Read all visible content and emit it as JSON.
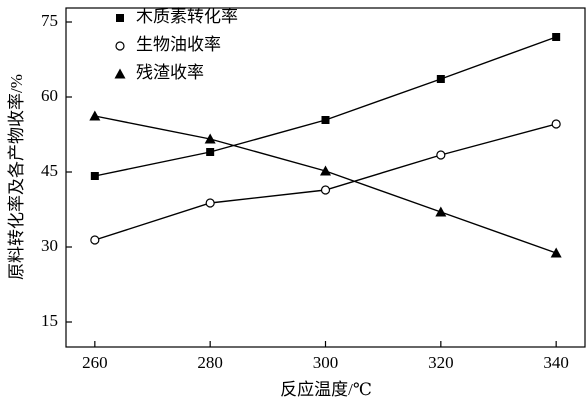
{
  "chart_data": {
    "type": "line",
    "x_label": "反应温度/℃",
    "y_label": "原料转化率及各产物收率/%",
    "x": [
      260,
      280,
      300,
      320,
      340
    ],
    "xlim": [
      255,
      345
    ],
    "xticks": [
      260,
      280,
      300,
      320,
      340
    ],
    "ylim": [
      10,
      77.8
    ],
    "yticks": [
      15,
      30,
      45,
      60,
      75
    ],
    "legend": "upper left",
    "series": [
      {
        "name": "木质素转化率",
        "color": "#000000",
        "marker": "square",
        "values": [
          44.2,
          49,
          55.4,
          63.6,
          72
        ]
      },
      {
        "name": "生物油收率",
        "color": "#000000",
        "marker": "circle-open",
        "values": [
          31.4,
          38.8,
          41.4,
          48.4,
          54.6
        ]
      },
      {
        "name": "残渣收率",
        "color": "#000000",
        "marker": "triangle",
        "values": [
          56.2,
          51.6,
          45.2,
          37,
          28.8
        ]
      }
    ]
  }
}
